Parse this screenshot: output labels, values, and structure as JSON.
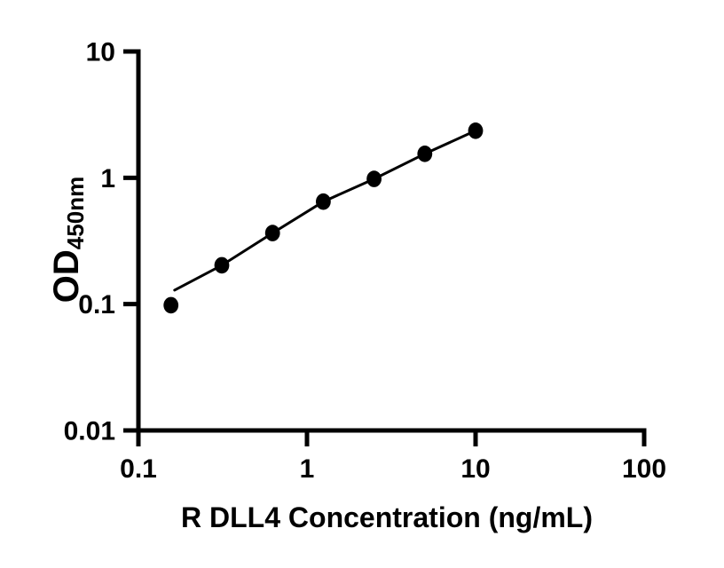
{
  "figure": {
    "background": "#ffffff",
    "ink_color": "#000000"
  },
  "chart_data": {
    "type": "scatter",
    "title": "",
    "xlabel": "R DLL4 Concentration (ng/mL)",
    "ylabel_main": "OD",
    "ylabel_sub": "450nm",
    "x_scale": "log",
    "y_scale": "log",
    "xlim": [
      0.1,
      100
    ],
    "ylim": [
      0.01,
      10
    ],
    "grid": false,
    "legend": "none",
    "x_ticks": [
      {
        "value": 0.1,
        "label": "0.1"
      },
      {
        "value": 1,
        "label": "1"
      },
      {
        "value": 10,
        "label": "10"
      },
      {
        "value": 100,
        "label": "100"
      }
    ],
    "y_ticks": [
      {
        "value": 10,
        "label": "10"
      },
      {
        "value": 1,
        "label": "1"
      },
      {
        "value": 0.1,
        "label": "0.1"
      },
      {
        "value": 0.01,
        "label": "0.01"
      }
    ],
    "series": [
      {
        "marker": "filled-circle",
        "color": "#000000",
        "points": [
          {
            "x": 0.156,
            "y": 0.098
          },
          {
            "x": 0.3125,
            "y": 0.203
          },
          {
            "x": 0.625,
            "y": 0.365
          },
          {
            "x": 1.25,
            "y": 0.648
          },
          {
            "x": 2.5,
            "y": 0.98
          },
          {
            "x": 5,
            "y": 1.55
          },
          {
            "x": 10,
            "y": 2.36
          }
        ],
        "fit_curve": [
          {
            "x": 0.164,
            "y": 0.129
          },
          {
            "x": 0.3125,
            "y": 0.203
          },
          {
            "x": 0.625,
            "y": 0.365
          },
          {
            "x": 1.25,
            "y": 0.648
          },
          {
            "x": 2.5,
            "y": 0.98
          },
          {
            "x": 5,
            "y": 1.55
          },
          {
            "x": 10,
            "y": 2.36
          }
        ]
      }
    ]
  }
}
